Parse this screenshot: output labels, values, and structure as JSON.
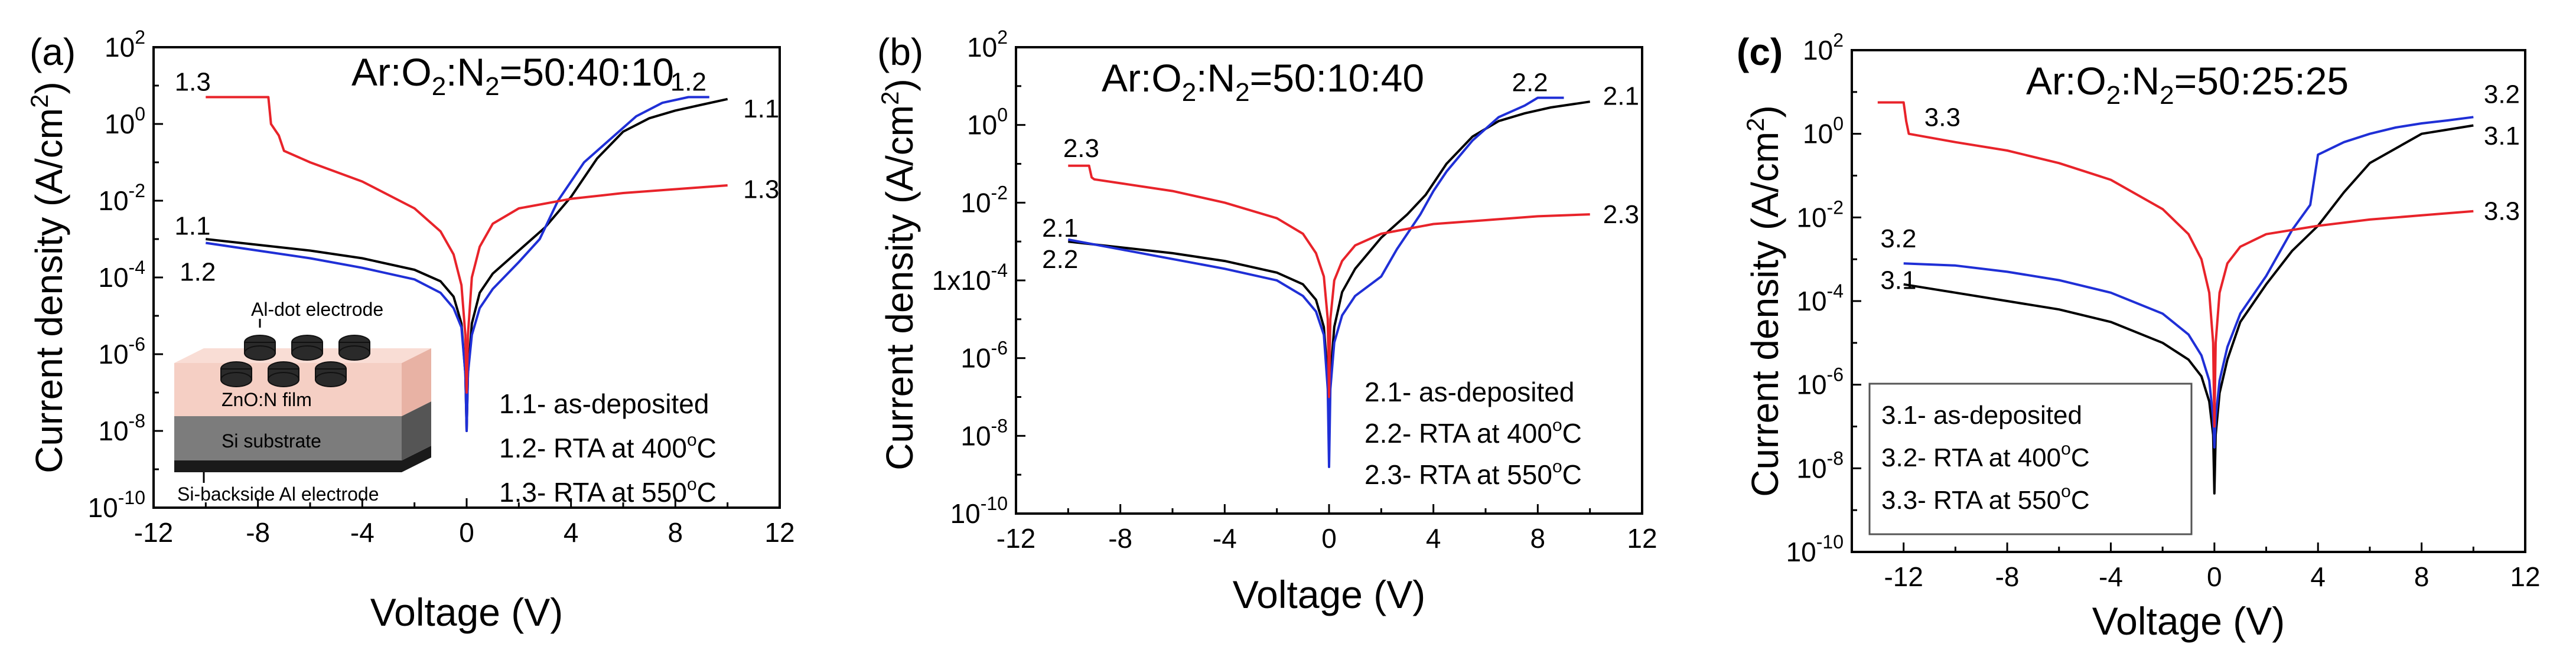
{
  "colors": {
    "as_deposited": "#000000",
    "rta_400": "#1f2fd6",
    "rta_550": "#e8232a",
    "axis": "#000000",
    "inset_top": "#f3c8bd",
    "inset_substrate": "#8a8a8a",
    "inset_backside": "#1a1a1a"
  },
  "chart_data": [
    {
      "type": "line",
      "panel_label": "(a)",
      "title": "Ar:O₂:N₂=50:40:10",
      "title_parts": {
        "p1": "Ar:O",
        "s1": "2",
        "p2": ":N",
        "s2": "2",
        "p3": "=50:40:10"
      },
      "xlabel": "Voltage (V)",
      "ylabel_parts": {
        "p1": "Current density (A/cm",
        "sup": "2",
        "p2": ")"
      },
      "xlim": [
        -12,
        12
      ],
      "ylim_exp": [
        -10,
        2
      ],
      "y_scale": "log",
      "xticks": [
        {
          "v": -12,
          "t": "-12"
        },
        {
          "v": -8,
          "t": "-8"
        },
        {
          "v": -4,
          "t": "-4"
        },
        {
          "v": 0,
          "t": "0"
        },
        {
          "v": 4,
          "t": "4"
        },
        {
          "v": 8,
          "t": "8"
        },
        {
          "v": 12,
          "t": "12"
        }
      ],
      "yticks": [
        {
          "e": 2,
          "base": "10",
          "exp": "2"
        },
        {
          "e": 0,
          "base": "10",
          "exp": "0"
        },
        {
          "e": -2,
          "base": "10",
          "exp": "-2"
        },
        {
          "e": -4,
          "base": "10",
          "exp": "-4"
        },
        {
          "e": -6,
          "base": "10",
          "exp": "-6"
        },
        {
          "e": -8,
          "base": "10",
          "exp": "-8"
        },
        {
          "e": -10,
          "base": "10",
          "exp": "-10"
        }
      ],
      "series": [
        {
          "name": "1.1",
          "color_key": "as_deposited",
          "x": [
            -10,
            -8,
            -6,
            -4,
            -2,
            -1,
            -0.5,
            -0.2,
            -0.05,
            0,
            0.05,
            0.2,
            0.5,
            1,
            2,
            3,
            4,
            5,
            6,
            7,
            8,
            9,
            10
          ],
          "log_y": [
            -3.0,
            -3.15,
            -3.3,
            -3.5,
            -3.8,
            -4.1,
            -4.5,
            -5.2,
            -6.5,
            -8.0,
            -6.5,
            -5.2,
            -4.4,
            -3.9,
            -3.3,
            -2.7,
            -1.9,
            -0.9,
            -0.2,
            0.15,
            0.35,
            0.5,
            0.65
          ]
        },
        {
          "name": "1.2",
          "color_key": "rta_400",
          "x": [
            -10,
            -8,
            -6,
            -4,
            -2,
            -1,
            -0.5,
            -0.2,
            -0.05,
            0,
            0.05,
            0.2,
            0.5,
            1,
            2,
            2.8,
            3.5,
            4,
            4.5,
            5.5,
            6.5,
            7.5,
            8.5,
            9.3
          ],
          "log_y": [
            -3.1,
            -3.3,
            -3.5,
            -3.75,
            -4.05,
            -4.4,
            -4.8,
            -5.3,
            -6.5,
            -8.0,
            -6.5,
            -5.5,
            -4.8,
            -4.3,
            -3.6,
            -3.0,
            -2.0,
            -1.5,
            -1.0,
            -0.4,
            0.2,
            0.55,
            0.7,
            0.7
          ]
        },
        {
          "name": "1.3",
          "color_key": "rta_550",
          "x": [
            -10,
            -9,
            -7.6,
            -7.5,
            -7.2,
            -7.0,
            -6.0,
            -4,
            -2,
            -1,
            -0.5,
            -0.2,
            -0.05,
            0,
            0.05,
            0.2,
            0.5,
            1,
            2,
            4,
            6,
            8,
            10
          ],
          "log_y": [
            0.7,
            0.7,
            0.7,
            0.0,
            -0.3,
            -0.7,
            -1.0,
            -1.5,
            -2.2,
            -2.8,
            -3.4,
            -4.2,
            -5.5,
            -7.0,
            -5.5,
            -4.0,
            -3.2,
            -2.6,
            -2.2,
            -1.95,
            -1.8,
            -1.7,
            -1.6
          ]
        }
      ],
      "series_labels": [
        {
          "text": "1.3",
          "x": -10.5,
          "ly": 1.1,
          "anchor": "middle"
        },
        {
          "text": "1.2",
          "x": 8.5,
          "ly": 1.1,
          "anchor": "middle"
        },
        {
          "text": "1.1",
          "x": 10.6,
          "ly": 0.4,
          "anchor": "start"
        },
        {
          "text": "1.3",
          "x": 10.6,
          "ly": -1.7,
          "anchor": "start"
        },
        {
          "text": "1.1",
          "x": -11.2,
          "ly": -2.65,
          "anchor": "start"
        },
        {
          "text": "1.2",
          "x": -11.0,
          "ly": -3.85,
          "anchor": "start"
        }
      ],
      "legend": [
        {
          "prefix": "1.1- as-deposited",
          "deg": "",
          "suffix": ""
        },
        {
          "prefix": "1.2- RTA at 400",
          "deg": "o",
          "suffix": "C"
        },
        {
          "prefix": "1.3- RTA at 550",
          "deg": "o",
          "suffix": "C"
        }
      ],
      "inset": {
        "electrode": "Al-dot electrode",
        "film": "ZnO:N film",
        "substrate": "Si substrate",
        "backside": "Si-backside Al electrode"
      }
    },
    {
      "type": "line",
      "panel_label": "(b)",
      "title": "Ar:O₂:N₂=50:10:40",
      "title_parts": {
        "p1": "Ar:O",
        "s1": "2",
        "p2": ":N",
        "s2": "2",
        "p3": "=50:10:40"
      },
      "xlabel": "Voltage (V)",
      "ylabel_parts": {
        "p1": "Current density (A/cm",
        "sup": "2",
        "p2": ")"
      },
      "xlim": [
        -12,
        12
      ],
      "ylim_exp": [
        -10,
        2
      ],
      "y_scale": "log",
      "xticks": [
        {
          "v": -12,
          "t": "-12"
        },
        {
          "v": -8,
          "t": "-8"
        },
        {
          "v": -4,
          "t": "-4"
        },
        {
          "v": 0,
          "t": "0"
        },
        {
          "v": 4,
          "t": "4"
        },
        {
          "v": 8,
          "t": "8"
        },
        {
          "v": 12,
          "t": "12"
        }
      ],
      "yticks": [
        {
          "e": 2,
          "base": "10",
          "exp": "2"
        },
        {
          "e": 0,
          "base": "10",
          "exp": "0"
        },
        {
          "e": -2,
          "base": "10",
          "exp": "-2"
        },
        {
          "e": -4,
          "base": "1x10",
          "exp": "-4"
        },
        {
          "e": -6,
          "base": "10",
          "exp": "-6"
        },
        {
          "e": -8,
          "base": "10",
          "exp": "-8"
        },
        {
          "e": -10,
          "base": "10",
          "exp": "-10"
        }
      ],
      "series": [
        {
          "name": "2.1",
          "color_key": "as_deposited",
          "x": [
            -10,
            -8,
            -6,
            -4,
            -2,
            -1,
            -0.5,
            -0.2,
            -0.05,
            0,
            0.05,
            0.2,
            0.5,
            1,
            2,
            3,
            3.7,
            4.5,
            5.5,
            6.5,
            7.5,
            8.5,
            10
          ],
          "log_y": [
            -3.0,
            -3.15,
            -3.3,
            -3.5,
            -3.8,
            -4.1,
            -4.5,
            -5.2,
            -6.5,
            -8.2,
            -6.5,
            -5.2,
            -4.3,
            -3.7,
            -2.9,
            -2.3,
            -1.8,
            -1.0,
            -0.3,
            0.1,
            0.3,
            0.45,
            0.6
          ]
        },
        {
          "name": "2.2",
          "color_key": "rta_400",
          "x": [
            -10,
            -8,
            -6,
            -4,
            -2,
            -1,
            -0.5,
            -0.2,
            -0.05,
            0,
            0.05,
            0.2,
            0.5,
            1,
            2,
            2.6,
            3.5,
            4,
            4.5,
            5.5,
            6.5,
            7.5,
            8,
            9
          ],
          "log_y": [
            -2.95,
            -3.2,
            -3.45,
            -3.7,
            -4.0,
            -4.4,
            -4.8,
            -5.4,
            -6.8,
            -8.8,
            -6.8,
            -5.6,
            -4.9,
            -4.4,
            -3.9,
            -3.2,
            -2.3,
            -1.7,
            -1.2,
            -0.4,
            0.2,
            0.5,
            0.7,
            0.7
          ]
        },
        {
          "name": "2.3",
          "color_key": "rta_550",
          "x": [
            -10,
            -9.2,
            -9.1,
            -9,
            -8,
            -6,
            -4,
            -2,
            -1,
            -0.5,
            -0.2,
            -0.05,
            0,
            0.05,
            0.2,
            0.5,
            1,
            2,
            4,
            6,
            8,
            10
          ],
          "log_y": [
            -1.05,
            -1.05,
            -1.35,
            -1.4,
            -1.5,
            -1.7,
            -2.0,
            -2.4,
            -2.8,
            -3.3,
            -3.9,
            -5.0,
            -7.0,
            -5.0,
            -4.0,
            -3.5,
            -3.1,
            -2.8,
            -2.55,
            -2.45,
            -2.35,
            -2.3
          ]
        }
      ],
      "series_labels": [
        {
          "text": "2.3",
          "x": -9.5,
          "ly": -0.6,
          "anchor": "middle"
        },
        {
          "text": "2.2",
          "x": 7.7,
          "ly": 1.1,
          "anchor": "middle"
        },
        {
          "text": "2.1",
          "x": 10.5,
          "ly": 0.75,
          "anchor": "start"
        },
        {
          "text": "2.3",
          "x": 10.5,
          "ly": -2.3,
          "anchor": "start"
        },
        {
          "text": "2.1",
          "x": -11.0,
          "ly": -2.65,
          "anchor": "start"
        },
        {
          "text": "2.2",
          "x": -11.0,
          "ly": -3.45,
          "anchor": "start"
        }
      ],
      "legend": [
        {
          "prefix": "2.1- as-deposited",
          "deg": "",
          "suffix": ""
        },
        {
          "prefix": "2.2- RTA at 400",
          "deg": "o",
          "suffix": "C"
        },
        {
          "prefix": "2.3- RTA at 550",
          "deg": "o",
          "suffix": "C"
        }
      ]
    },
    {
      "type": "line",
      "panel_label": "(c)",
      "title": "Ar:O₂:N₂=50:25:25",
      "title_parts": {
        "p1": "Ar:O",
        "s1": "2",
        "p2": ":N",
        "s2": "2",
        "p3": "=50:25:25"
      },
      "xlabel": "Voltage (V)",
      "ylabel_parts": {
        "p1": "Current density (A/cm",
        "sup": "2",
        "p2": ")"
      },
      "xlim": [
        -14,
        12
      ],
      "ylim_exp": [
        -10,
        2
      ],
      "y_scale": "log",
      "xticks": [
        {
          "v": -12,
          "t": "-12"
        },
        {
          "v": -8,
          "t": "-8"
        },
        {
          "v": -4,
          "t": "-4"
        },
        {
          "v": 0,
          "t": "0"
        },
        {
          "v": 4,
          "t": "4"
        },
        {
          "v": 8,
          "t": "8"
        },
        {
          "v": 12,
          "t": "12"
        }
      ],
      "yticks": [
        {
          "e": 2,
          "base": "10",
          "exp": "2"
        },
        {
          "e": 0,
          "base": "10",
          "exp": "0"
        },
        {
          "e": -2,
          "base": "10",
          "exp": "-2"
        },
        {
          "e": -4,
          "base": "10",
          "exp": "-4"
        },
        {
          "e": -6,
          "base": "10",
          "exp": "-6"
        },
        {
          "e": -8,
          "base": "10",
          "exp": "-8"
        },
        {
          "e": -10,
          "base": "10",
          "exp": "-10"
        }
      ],
      "series": [
        {
          "name": "3.1",
          "color_key": "as_deposited",
          "x": [
            -12,
            -10,
            -8,
            -6,
            -4,
            -2,
            -1,
            -0.5,
            -0.2,
            -0.05,
            0,
            0.05,
            0.2,
            0.5,
            1,
            2,
            3,
            4,
            5,
            6,
            7,
            8,
            9,
            10
          ],
          "log_y": [
            -3.6,
            -3.8,
            -4.0,
            -4.2,
            -4.5,
            -5.0,
            -5.4,
            -5.8,
            -6.4,
            -7.2,
            -8.6,
            -7.2,
            -6.2,
            -5.4,
            -4.5,
            -3.6,
            -2.8,
            -2.2,
            -1.4,
            -0.7,
            -0.35,
            0.0,
            0.1,
            0.2
          ]
        },
        {
          "name": "3.2",
          "color_key": "rta_400",
          "x": [
            -12,
            -10,
            -8,
            -6,
            -4,
            -2,
            -1,
            -0.5,
            -0.2,
            -0.05,
            0,
            0.05,
            0.2,
            0.5,
            1,
            2,
            3,
            3.7,
            4,
            5,
            6,
            7,
            8,
            9,
            10
          ],
          "log_y": [
            -3.1,
            -3.15,
            -3.3,
            -3.5,
            -3.8,
            -4.3,
            -4.8,
            -5.3,
            -5.9,
            -6.8,
            -7.5,
            -6.8,
            -5.9,
            -5.1,
            -4.3,
            -3.4,
            -2.3,
            -1.7,
            -0.5,
            -0.2,
            0.0,
            0.15,
            0.25,
            0.32,
            0.4
          ]
        },
        {
          "name": "3.3",
          "color_key": "rta_550",
          "x": [
            -13,
            -12,
            -11.9,
            -11.8,
            -10,
            -8,
            -6,
            -4,
            -2,
            -1,
            -0.5,
            -0.2,
            -0.05,
            0,
            0.05,
            0.2,
            0.5,
            1,
            2,
            4,
            6,
            8,
            10
          ],
          "log_y": [
            0.75,
            0.75,
            0.3,
            0.0,
            -0.2,
            -0.4,
            -0.7,
            -1.1,
            -1.8,
            -2.4,
            -3.0,
            -3.8,
            -5.0,
            -7.0,
            -5.0,
            -3.8,
            -3.1,
            -2.7,
            -2.4,
            -2.2,
            -2.05,
            -1.95,
            -1.85
          ]
        }
      ],
      "series_labels": [
        {
          "text": "3.3",
          "x": -11.2,
          "ly": 0.4,
          "anchor": "start"
        },
        {
          "text": "3.2",
          "x": 10.4,
          "ly": 0.95,
          "anchor": "start"
        },
        {
          "text": "3.1",
          "x": 10.4,
          "ly": -0.05,
          "anchor": "start"
        },
        {
          "text": "3.3",
          "x": 10.4,
          "ly": -1.85,
          "anchor": "start"
        },
        {
          "text": "3.2",
          "x": -12.2,
          "ly": -2.5,
          "anchor": "middle"
        },
        {
          "text": "3.1",
          "x": -12.2,
          "ly": -3.5,
          "anchor": "middle"
        }
      ],
      "legend": [
        {
          "prefix": "3.1- as-deposited",
          "deg": "",
          "suffix": ""
        },
        {
          "prefix": "3.2- RTA at 400",
          "deg": "o",
          "suffix": "C"
        },
        {
          "prefix": "3.3- RTA at 550",
          "deg": "o",
          "suffix": "C"
        }
      ]
    }
  ]
}
